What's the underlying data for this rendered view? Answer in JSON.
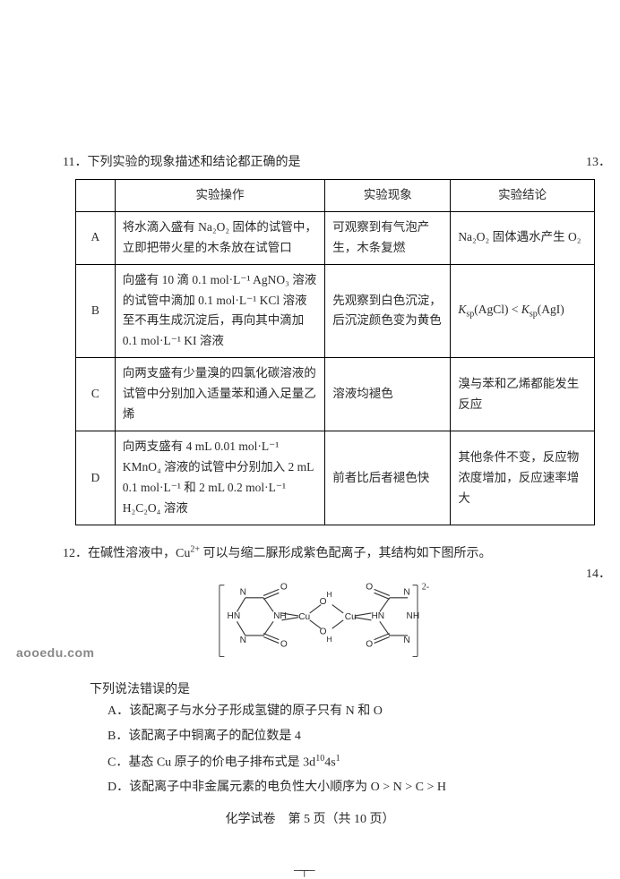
{
  "q11": {
    "number": "11．",
    "stem": "下列实验的现象描述和结论都正确的是",
    "headers": [
      "",
      "实验操作",
      "实验现象",
      "实验结论"
    ],
    "rows": [
      {
        "label": "A",
        "op": "将水滴入盛有 Na₂O₂ 固体的试管中，立即把带火星的木条放在试管口",
        "ph": "可观察到有气泡产生，木条复燃",
        "co": "Na₂O₂ 固体遇水产生 O₂"
      },
      {
        "label": "B",
        "op": "向盛有 10 滴 0.1 mol·L⁻¹ AgNO₃ 溶液的试管中滴加 0.1 mol·L⁻¹ KCl 溶液至不再生成沉淀后，再向其中滴加 0.1 mol·L⁻¹ KI 溶液",
        "ph": "先观察到白色沉淀，后沉淀颜色变为黄色",
        "co_html": "<i>K</i><span class=\"sub\">sp</span>(AgCl) &lt; <i>K</i><span class=\"sub\">sp</span>(AgI)"
      },
      {
        "label": "C",
        "op": "向两支盛有少量溴的四氯化碳溶液的试管中分别加入适量苯和通入足量乙烯",
        "ph": "溶液均褪色",
        "co": "溴与苯和乙烯都能发生反应"
      },
      {
        "label": "D",
        "op": "向两支盛有 4 mL 0.01 mol·L⁻¹ KMnO₄ 溶液的试管中分别加入 2 mL 0.1 mol·L⁻¹ 和 2 mL 0.2 mol·L⁻¹ H₂C₂O₄ 溶液",
        "ph": "前者比后者褪色快",
        "co": "其他条件不变，反应物浓度增加，反应速率增大"
      }
    ]
  },
  "q12": {
    "number": "12．",
    "stem_html": "在碱性溶液中，Cu<span class=\"sup\">2+</span> 可以与缩二脲形成紫色配离子，其结构如下图所示。",
    "prompt": "下列说法错误的是",
    "options": {
      "A": "A．该配离子与水分子形成氢键的原子只有 N 和 O",
      "B": "B．该配离子中铜离子的配位数是 4",
      "C_html": "C．基态 Cu 原子的价电子排布式是 3d<span class=\"sup\">10</span>4s<span class=\"sup\">1</span>",
      "D": "D．该配离子中非金属元素的电负性大小顺序为 O > N > C > H"
    },
    "diagram": {
      "atoms": [
        "O",
        "NH",
        "Cu",
        "HN",
        "H"
      ],
      "charge": "2-",
      "stroke": "#333333",
      "text_color": "#2a2a2a"
    }
  },
  "footer": {
    "text": "化学试卷　第 5 页（共 10 页）"
  },
  "watermark": "aooedu.com",
  "edge": {
    "q13": "13．",
    "q14": "14．"
  }
}
